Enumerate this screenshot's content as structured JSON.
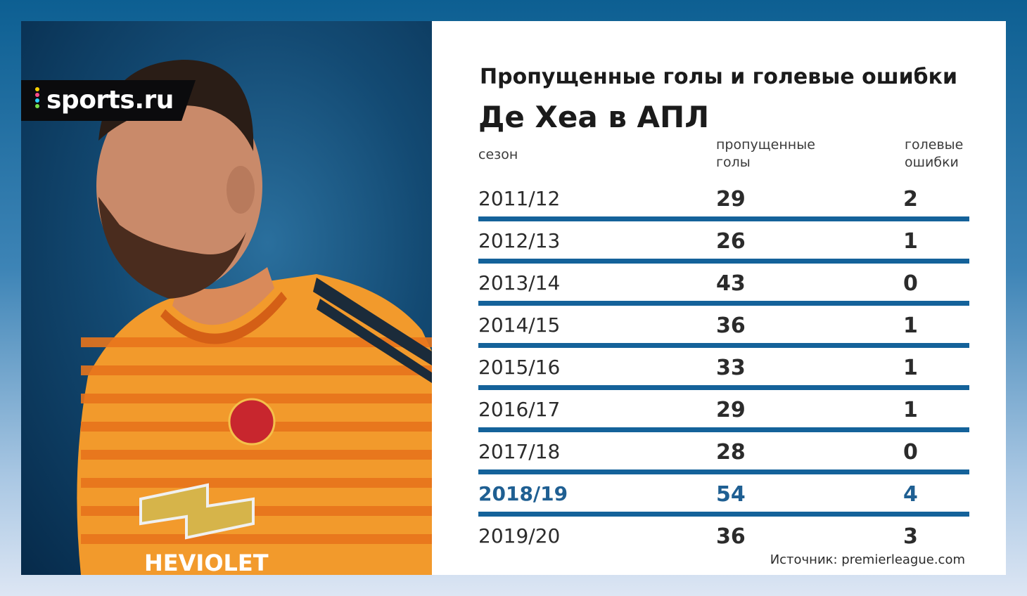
{
  "logo": {
    "text": "sports.ru"
  },
  "photo": {
    "jersey_sponsor": "HEVIOLET"
  },
  "title": {
    "line1": "Пропущенные голы и голевые ошибки",
    "line2": "Де Хеа в АПЛ"
  },
  "headers": {
    "season": "сезон",
    "conceded_1": "пропущенные",
    "conceded_2": "голы",
    "errors_1": "голевые",
    "errors_2": "ошибки"
  },
  "chart_data": {
    "type": "table",
    "title": "Пропущенные голы и голевые ошибки Де Хеа в АПЛ",
    "columns": [
      "сезон",
      "пропущенные голы",
      "голевые ошибки"
    ],
    "rows": [
      [
        "2011/12",
        "29",
        "2"
      ],
      [
        "2012/13",
        "26",
        "1"
      ],
      [
        "2013/14",
        "43",
        "0"
      ],
      [
        "2014/15",
        "36",
        "1"
      ],
      [
        "2015/16",
        "33",
        "1"
      ],
      [
        "2016/17",
        "29",
        "1"
      ],
      [
        "2017/18",
        "28",
        "0"
      ],
      [
        "2018/19",
        "54",
        "4"
      ],
      [
        "2019/20",
        "36",
        "3"
      ]
    ],
    "highlight_row": "2018/19"
  },
  "source": "Источник: premierleague.com",
  "colors": {
    "accent": "#14629a",
    "highlight_text": "#1f5f92",
    "jersey": "#f39a2a"
  }
}
